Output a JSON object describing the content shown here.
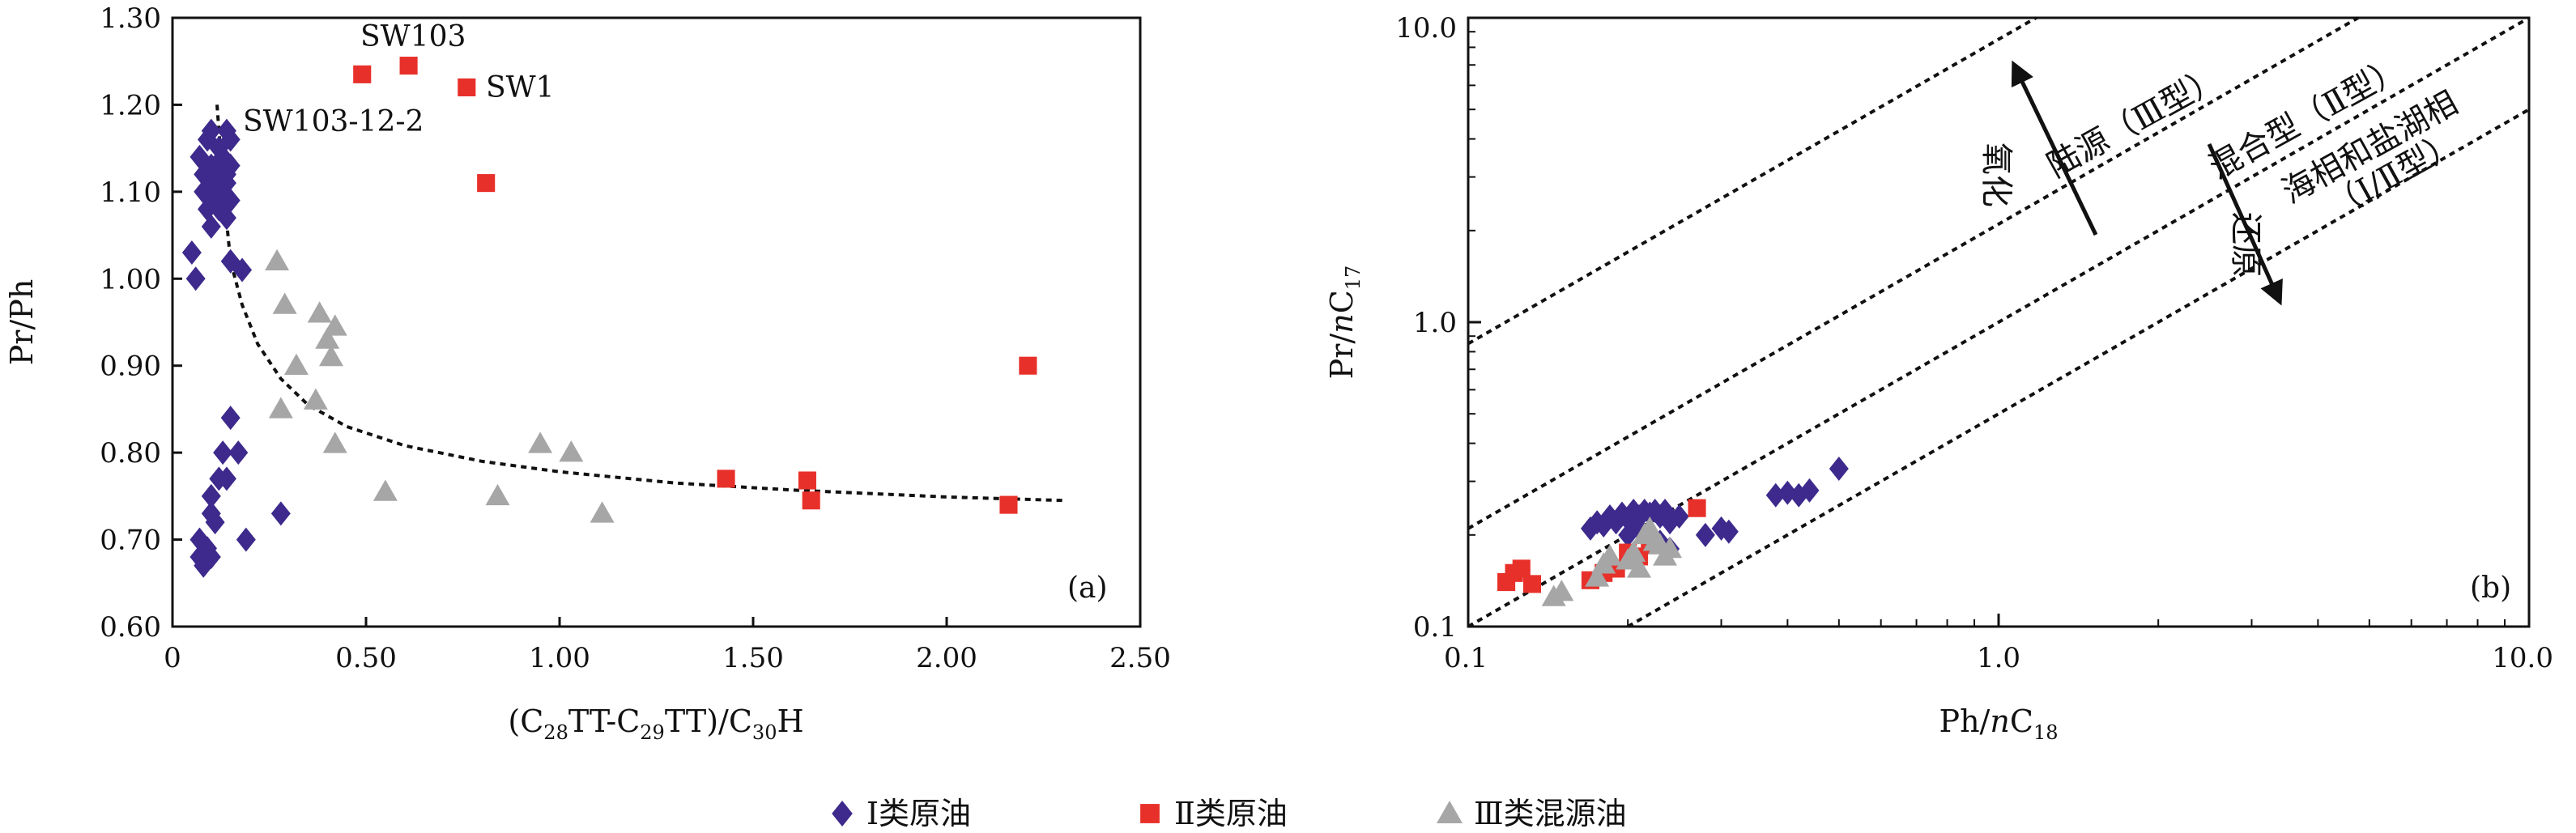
{
  "chart_data": [
    {
      "id": "a",
      "type": "scatter",
      "panel_label": "(a)",
      "xlabel": "(C28TT-C29TT)/C30H",
      "ylabel": "Pr/Ph",
      "xlim": [
        0,
        2.5
      ],
      "ylim": [
        0.6,
        1.3
      ],
      "xticks": [
        "0",
        "0.50",
        "1.00",
        "1.50",
        "2.00",
        "2.50"
      ],
      "xtick_values": [
        0,
        0.5,
        1.0,
        1.5,
        2.0,
        2.5
      ],
      "yticks": [
        "0.60",
        "0.70",
        "0.80",
        "0.90",
        "1.00",
        "1.10",
        "1.20",
        "1.30"
      ],
      "ytick_values": [
        0.6,
        0.7,
        0.8,
        0.9,
        1.0,
        1.1,
        1.2,
        1.3
      ],
      "grid": false,
      "series": [
        {
          "name": "Ⅰ类原油",
          "marker": "diamond",
          "color": "#3d2a8c",
          "points": [
            [
              0.05,
              1.03
            ],
            [
              0.06,
              1.0
            ],
            [
              0.07,
              1.14
            ],
            [
              0.08,
              1.12
            ],
            [
              0.08,
              1.1
            ],
            [
              0.09,
              1.16
            ],
            [
              0.09,
              1.08
            ],
            [
              0.1,
              1.17
            ],
            [
              0.1,
              1.13
            ],
            [
              0.1,
              1.06
            ],
            [
              0.11,
              1.11
            ],
            [
              0.11,
              1.09
            ],
            [
              0.12,
              1.15
            ],
            [
              0.12,
              1.12
            ],
            [
              0.13,
              1.1
            ],
            [
              0.14,
              1.07
            ],
            [
              0.15,
              1.13
            ],
            [
              0.14,
              1.17
            ],
            [
              0.15,
              1.16
            ],
            [
              0.13,
              1.14
            ],
            [
              0.12,
              1.08
            ],
            [
              0.1,
              1.11
            ],
            [
              0.14,
              1.11
            ],
            [
              0.15,
              1.09
            ],
            [
              0.14,
              1.12
            ],
            [
              0.15,
              1.02
            ],
            [
              0.18,
              1.01
            ],
            [
              0.07,
              0.7
            ],
            [
              0.07,
              0.68
            ],
            [
              0.08,
              0.67
            ],
            [
              0.09,
              0.69
            ],
            [
              0.1,
              0.68
            ],
            [
              0.1,
              0.73
            ],
            [
              0.1,
              0.75
            ],
            [
              0.11,
              0.72
            ],
            [
              0.12,
              0.77
            ],
            [
              0.13,
              0.8
            ],
            [
              0.14,
              0.77
            ],
            [
              0.15,
              0.84
            ],
            [
              0.17,
              0.8
            ],
            [
              0.19,
              0.7
            ],
            [
              0.28,
              0.73
            ]
          ]
        },
        {
          "name": "Ⅱ类原油",
          "marker": "square",
          "color": "#e8302a",
          "points": [
            [
              0.49,
              1.235
            ],
            [
              0.61,
              1.245
            ],
            [
              0.76,
              1.22
            ],
            [
              0.81,
              1.11
            ],
            [
              1.43,
              0.77
            ],
            [
              1.64,
              0.768
            ],
            [
              1.65,
              0.745
            ],
            [
              2.16,
              0.74
            ],
            [
              2.21,
              0.9
            ]
          ]
        },
        {
          "name": "Ⅲ类混源油",
          "marker": "triangle",
          "color": "#a6a6a6",
          "points": [
            [
              0.27,
              1.02
            ],
            [
              0.29,
              0.97
            ],
            [
              0.28,
              0.85
            ],
            [
              0.32,
              0.9
            ],
            [
              0.37,
              0.86
            ],
            [
              0.38,
              0.96
            ],
            [
              0.4,
              0.93
            ],
            [
              0.41,
              0.91
            ],
            [
              0.42,
              0.945
            ],
            [
              0.42,
              0.81
            ],
            [
              0.55,
              0.755
            ],
            [
              0.84,
              0.75
            ],
            [
              0.95,
              0.81
            ],
            [
              1.03,
              0.8
            ],
            [
              1.11,
              0.73
            ]
          ]
        }
      ],
      "trend_curve": [
        [
          0.115,
          1.2
        ],
        [
          0.13,
          1.11
        ],
        [
          0.15,
          1.02
        ],
        [
          0.18,
          0.97
        ],
        [
          0.22,
          0.925
        ],
        [
          0.28,
          0.885
        ],
        [
          0.35,
          0.855
        ],
        [
          0.45,
          0.83
        ],
        [
          0.6,
          0.808
        ],
        [
          0.8,
          0.79
        ],
        [
          1.0,
          0.778
        ],
        [
          1.3,
          0.765
        ],
        [
          1.6,
          0.757
        ],
        [
          2.0,
          0.749
        ],
        [
          2.3,
          0.745
        ]
      ],
      "annotations": [
        {
          "text": "SW103",
          "at": [
            0.63,
            1.275
          ]
        },
        {
          "text": "SW1",
          "at": [
            0.93,
            1.22
          ]
        },
        {
          "text": "SW103-12-2",
          "at": [
            0.2,
            1.17
          ]
        }
      ]
    },
    {
      "id": "b",
      "type": "scatter",
      "panel_label": "(b)",
      "xlabel": "Ph/nC18",
      "ylabel": "Pr/nC17",
      "xscale": "log",
      "yscale": "log",
      "xlim": [
        0.1,
        10.0
      ],
      "ylim": [
        0.1,
        10.0
      ],
      "xticks": [
        "0.1",
        "1.0",
        "10.0"
      ],
      "xtick_values": [
        0.1,
        1.0,
        10.0
      ],
      "yticks": [
        "0.1",
        "1.0",
        "10.0"
      ],
      "ytick_values": [
        0.1,
        1.0,
        10.0
      ],
      "grid": false,
      "series": [
        {
          "name": "Ⅰ类原油",
          "marker": "diamond",
          "color": "#3d2a8c",
          "points": [
            [
              0.17,
              0.21
            ],
            [
              0.175,
              0.22
            ],
            [
              0.18,
              0.215
            ],
            [
              0.185,
              0.23
            ],
            [
              0.19,
              0.22
            ],
            [
              0.195,
              0.235
            ],
            [
              0.2,
              0.225
            ],
            [
              0.205,
              0.24
            ],
            [
              0.21,
              0.23
            ],
            [
              0.215,
              0.24
            ],
            [
              0.22,
              0.235
            ],
            [
              0.225,
              0.24
            ],
            [
              0.23,
              0.23
            ],
            [
              0.235,
              0.24
            ],
            [
              0.24,
              0.22
            ],
            [
              0.2,
              0.2
            ],
            [
              0.21,
              0.21
            ],
            [
              0.22,
              0.2
            ],
            [
              0.23,
              0.19
            ],
            [
              0.24,
              0.18
            ],
            [
              0.25,
              0.23
            ],
            [
              0.28,
              0.2
            ],
            [
              0.3,
              0.21
            ],
            [
              0.31,
              0.205
            ],
            [
              0.38,
              0.27
            ],
            [
              0.4,
              0.275
            ],
            [
              0.42,
              0.27
            ],
            [
              0.44,
              0.28
            ],
            [
              0.5,
              0.33
            ]
          ]
        },
        {
          "name": "Ⅱ类原油",
          "marker": "square",
          "color": "#e8302a",
          "points": [
            [
              0.118,
              0.14
            ],
            [
              0.122,
              0.15
            ],
            [
              0.126,
              0.155
            ],
            [
              0.132,
              0.138
            ],
            [
              0.17,
              0.142
            ],
            [
              0.18,
              0.15
            ],
            [
              0.19,
              0.155
            ],
            [
              0.2,
              0.175
            ],
            [
              0.21,
              0.17
            ],
            [
              0.22,
              0.185
            ],
            [
              0.27,
              0.245
            ]
          ]
        },
        {
          "name": "Ⅲ类混源油",
          "marker": "triangle",
          "color": "#a6a6a6",
          "points": [
            [
              0.145,
              0.125
            ],
            [
              0.15,
              0.13
            ],
            [
              0.175,
              0.145
            ],
            [
              0.18,
              0.16
            ],
            [
              0.185,
              0.17
            ],
            [
              0.2,
              0.165
            ],
            [
              0.205,
              0.175
            ],
            [
              0.21,
              0.155
            ],
            [
              0.215,
              0.2
            ],
            [
              0.22,
              0.21
            ],
            [
              0.225,
              0.19
            ],
            [
              0.23,
              0.185
            ],
            [
              0.235,
              0.17
            ],
            [
              0.24,
              0.18
            ]
          ]
        }
      ],
      "reference_lines": [
        {
          "k": 8.5
        },
        {
          "k": 2.1
        },
        {
          "k": 1.0
        },
        {
          "k": 0.5
        }
      ],
      "zone_labels": [
        "陆源（Ⅲ型）",
        "混合型（Ⅱ型）",
        "海相和盐湖相",
        "（Ⅰ/Ⅱ型）"
      ],
      "arrow_labels": {
        "oxidation": "氧化",
        "reduction": "还原"
      }
    }
  ],
  "legend": [
    {
      "label": "Ⅰ类原油",
      "marker": "diamond",
      "color": "#3d2a8c"
    },
    {
      "label": "Ⅱ类原油",
      "marker": "square",
      "color": "#e8302a"
    },
    {
      "label": "Ⅲ类混源油",
      "marker": "triangle",
      "color": "#a6a6a6"
    }
  ]
}
